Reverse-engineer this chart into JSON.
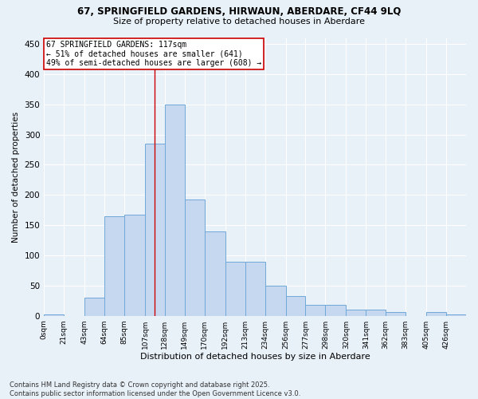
{
  "title1": "67, SPRINGFIELD GARDENS, HIRWAUN, ABERDARE, CF44 9LQ",
  "title2": "Size of property relative to detached houses in Aberdare",
  "xlabel": "Distribution of detached houses by size in Aberdare",
  "ylabel": "Number of detached properties",
  "bar_values": [
    2,
    0,
    30,
    165,
    167,
    285,
    350,
    193,
    140,
    90,
    90,
    50,
    32,
    18,
    18,
    10,
    10,
    6,
    6,
    2
  ],
  "bin_edges": [
    0,
    21,
    43,
    64,
    85,
    107,
    128,
    149,
    170,
    192,
    213,
    234,
    256,
    277,
    298,
    320,
    341,
    362,
    405,
    426
  ],
  "tick_labels": [
    "0sqm",
    "21sqm",
    "43sqm",
    "64sqm",
    "85sqm",
    "107sqm",
    "128sqm",
    "149sqm",
    "170sqm",
    "192sqm",
    "213sqm",
    "234sqm",
    "256sqm",
    "277sqm",
    "298sqm",
    "320sqm",
    "341sqm",
    "362sqm",
    "383sqm",
    "405sqm",
    "426sqm"
  ],
  "bin_edges_full": [
    0,
    21,
    43,
    64,
    85,
    107,
    128,
    149,
    170,
    192,
    213,
    234,
    256,
    277,
    298,
    320,
    341,
    362,
    383,
    405,
    426,
    447
  ],
  "bar_values_full": [
    2,
    0,
    30,
    165,
    167,
    285,
    350,
    193,
    140,
    90,
    90,
    50,
    32,
    18,
    18,
    10,
    10,
    6,
    0,
    6,
    2
  ],
  "bar_color": "#c5d8f0",
  "bar_edge_color": "#6fa8d8",
  "vline_x": 117,
  "vline_color": "#cc0000",
  "annotation_text": "67 SPRINGFIELD GARDENS: 117sqm\n← 51% of detached houses are smaller (641)\n49% of semi-detached houses are larger (608) →",
  "annotation_box_color": "#ffffff",
  "annotation_box_edge": "#cc0000",
  "ylim": [
    0,
    460
  ],
  "yticks": [
    0,
    50,
    100,
    150,
    200,
    250,
    300,
    350,
    400,
    450
  ],
  "bg_color": "#e8f0f8",
  "grid_color": "#ffffff",
  "footnote": "Contains HM Land Registry data © Crown copyright and database right 2025.\nContains public sector information licensed under the Open Government Licence v3.0."
}
